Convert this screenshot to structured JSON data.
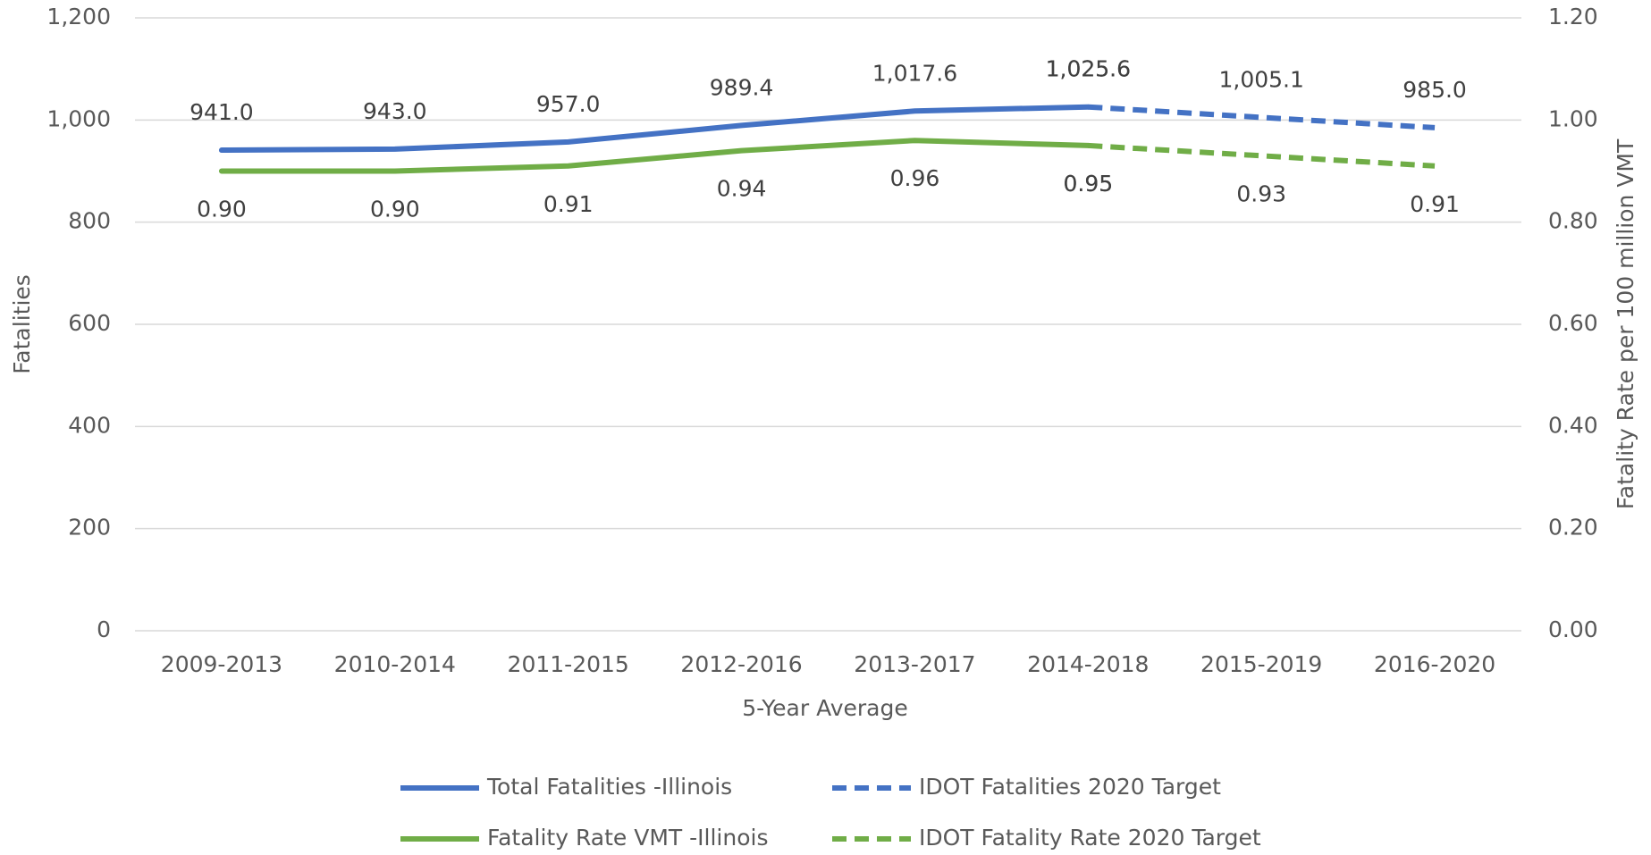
{
  "chart_data": {
    "type": "line",
    "x_label": "5-Year Average",
    "y_label": "Fatalities",
    "y2_label": "Fatality Rate per 100 million VMT",
    "categories": [
      "2009-2013",
      "2010-2014",
      "2011-2015",
      "2012-2016",
      "2013-2017",
      "2014-2018",
      "2015-2019",
      "2016-2020"
    ],
    "ylim": [
      0,
      1200
    ],
    "yticks": [
      {
        "value": 0,
        "label": "0"
      },
      {
        "value": 200,
        "label": "200"
      },
      {
        "value": 400,
        "label": "400"
      },
      {
        "value": 600,
        "label": "600"
      },
      {
        "value": 800,
        "label": "800"
      },
      {
        "value": 1000,
        "label": "1,000"
      },
      {
        "value": 1200,
        "label": "1,200"
      }
    ],
    "y2lim": [
      0,
      1.2
    ],
    "y2ticks": [
      {
        "value": 0,
        "label": "0.00"
      },
      {
        "value": 0.2,
        "label": "0.20"
      },
      {
        "value": 0.4,
        "label": "0.40"
      },
      {
        "value": 0.6,
        "label": "0.60"
      },
      {
        "value": 0.8,
        "label": "0.80"
      },
      {
        "value": 1.0,
        "label": "1.00"
      },
      {
        "value": 1.2,
        "label": "1.20"
      }
    ],
    "grid": true,
    "legend": "bottom",
    "series": [
      {
        "name": "Total Fatalities  -Illinois",
        "color": "#4472c4",
        "dashed": false,
        "axis": "y",
        "values": [
          941.0,
          943.0,
          957.0,
          989.4,
          1017.6,
          1025.6,
          null,
          null
        ],
        "value_labels": [
          "941.0",
          "943.0",
          "957.0",
          "989.4",
          "1,017.6",
          "1,025.6",
          null,
          null
        ]
      },
      {
        "name": "IDOT Fatalities 2020 Target",
        "color": "#4472c4",
        "dashed": true,
        "axis": "y",
        "values": [
          null,
          null,
          null,
          null,
          null,
          1025.6,
          1005.1,
          985.0
        ],
        "value_labels": [
          null,
          null,
          null,
          null,
          null,
          "1,025.6",
          "1,005.1",
          "985.0"
        ]
      },
      {
        "name": "Fatality Rate VMT  -Illinois",
        "color": "#70ad47",
        "dashed": false,
        "axis": "y2",
        "values": [
          0.9,
          0.9,
          0.91,
          0.94,
          0.96,
          0.95,
          null,
          null
        ],
        "value_labels": [
          "0.90",
          "0.90",
          "0.91",
          "0.94",
          "0.96",
          "0.95",
          null,
          null
        ]
      },
      {
        "name": "IDOT Fatality Rate 2020 Target",
        "color": "#70ad47",
        "dashed": true,
        "axis": "y2",
        "values": [
          null,
          null,
          null,
          null,
          null,
          0.95,
          0.93,
          0.91
        ],
        "value_labels": [
          null,
          null,
          null,
          null,
          null,
          "0.95",
          "0.93",
          "0.91"
        ]
      }
    ]
  }
}
